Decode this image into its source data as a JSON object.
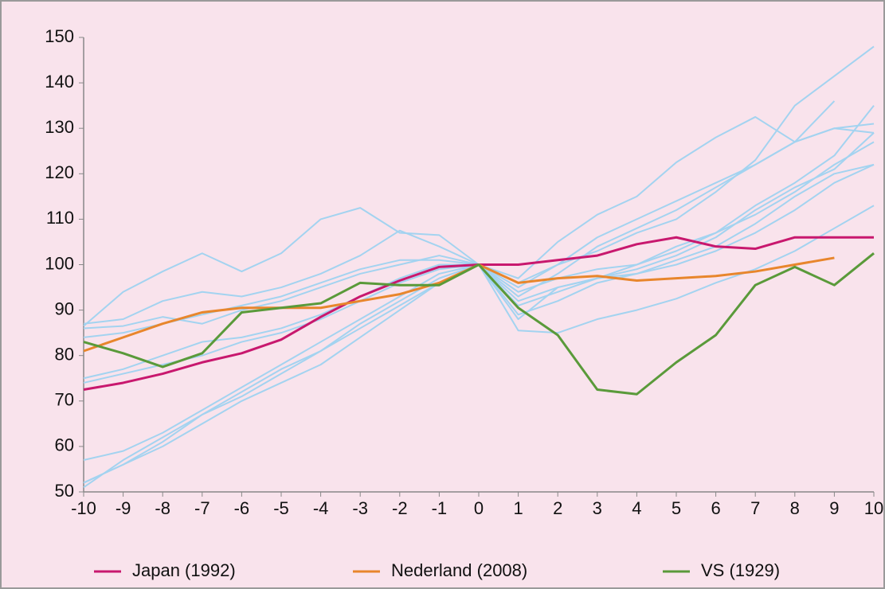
{
  "chart_data": {
    "type": "line",
    "x": [
      -10,
      -9,
      -8,
      -7,
      -6,
      -5,
      -4,
      -3,
      -2,
      -1,
      0,
      1,
      2,
      3,
      4,
      5,
      6,
      7,
      8,
      9,
      10
    ],
    "xlim": [
      -10,
      10
    ],
    "xticks": [
      -10,
      -9,
      -8,
      -7,
      -6,
      -5,
      -4,
      -3,
      -2,
      -1,
      0,
      1,
      2,
      3,
      4,
      5,
      6,
      7,
      8,
      9,
      10
    ],
    "ylim": [
      50,
      150
    ],
    "yticks": [
      50,
      60,
      70,
      80,
      90,
      100,
      110,
      120,
      130,
      140,
      150
    ],
    "grid": false,
    "legend": "bottom",
    "series": [
      {
        "color": "#a3d3f0",
        "values": [
          86.5,
          94,
          98.5,
          102.5,
          98.5,
          102.5,
          110,
          112.5,
          107,
          106.5,
          100,
          93,
          98,
          104,
          108,
          112,
          117,
          122,
          127,
          130,
          131
        ]
      },
      {
        "color": "#a3d3f0",
        "values": [
          87,
          88,
          92,
          94,
          93,
          95,
          98,
          102,
          107.5,
          104,
          100,
          97,
          105,
          111,
          115,
          122.5,
          128,
          132.5,
          127,
          130,
          129
        ]
      },
      {
        "color": "#a3d3f0",
        "values": [
          86,
          86.5,
          88.5,
          87,
          90,
          92,
          95,
          98,
          100,
          102,
          100,
          95,
          100,
          106,
          110,
          114,
          118,
          122,
          127,
          136,
          null
        ]
      },
      {
        "color": "#a3d3f0",
        "values": [
          84,
          85,
          87,
          89,
          91,
          93,
          96,
          99,
          101,
          101,
          100,
          96,
          100,
          103,
          107,
          110,
          116,
          123,
          135,
          141.5,
          148
        ]
      },
      {
        "color": "#a3d3f0",
        "values": [
          75,
          77,
          80,
          83,
          84,
          86,
          89,
          93,
          97,
          100,
          100,
          94,
          97,
          99,
          100,
          103,
          107,
          113,
          118,
          124,
          135
        ]
      },
      {
        "color": "#a3d3f0",
        "values": [
          74,
          76,
          78,
          80,
          83,
          85,
          88,
          92,
          96,
          99,
          100,
          92,
          95,
          97,
          99,
          102,
          106,
          112,
          117,
          121,
          129
        ]
      },
      {
        "color": "#a3d3f0",
        "values": [
          57,
          59,
          63,
          68,
          73,
          78,
          83,
          88,
          93,
          98,
          100,
          89,
          92,
          96,
          98,
          101,
          104,
          109,
          115,
          120,
          122
        ]
      },
      {
        "color": "#a3d3f0",
        "values": [
          52,
          56,
          60,
          65,
          70,
          74,
          78,
          84,
          90,
          96,
          100,
          88,
          95,
          97,
          98,
          100,
          103,
          107,
          112,
          118,
          122
        ]
      },
      {
        "color": "#a3d3f0",
        "values": [
          51,
          57,
          62,
          67,
          72,
          77,
          81,
          87,
          92,
          97,
          100,
          85.5,
          85,
          88,
          90,
          92.5,
          96,
          99,
          103,
          108,
          113
        ]
      },
      {
        "color": "#a3d3f0",
        "values": [
          52,
          56,
          61,
          67,
          71,
          76,
          81,
          86,
          91,
          96,
          100,
          91,
          94,
          97,
          100,
          104,
          107,
          111,
          116,
          122,
          127
        ]
      },
      {
        "name": "Japan (1992)",
        "color": "#c8186e",
        "values": [
          72.5,
          74,
          76,
          78.5,
          80.5,
          83.5,
          88.5,
          93,
          96.5,
          99.5,
          100,
          100,
          101,
          102,
          104.5,
          106,
          104,
          103.5,
          106,
          106,
          106
        ]
      },
      {
        "name": "Nederland (2008)",
        "color": "#e8862c",
        "values": [
          81,
          84,
          87,
          89.5,
          90.5,
          90.5,
          90.5,
          92,
          93.5,
          96,
          100,
          96,
          97,
          97.5,
          96.5,
          97,
          97.5,
          98.5,
          100,
          101.5,
          null
        ]
      },
      {
        "name": "VS (1929)",
        "color": "#5a9a3a",
        "values": [
          83,
          80.5,
          77.5,
          80.5,
          89.5,
          90.5,
          91.5,
          96,
          95.5,
          95.5,
          100,
          90.5,
          84.5,
          72.5,
          71.5,
          78.5,
          84.5,
          95.5,
          99.5,
          95.5,
          102.5
        ]
      }
    ]
  }
}
